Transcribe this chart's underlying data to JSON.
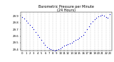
{
  "title": "Barometric Pressure per Minute\n(24 Hours)",
  "dot_color": "#0000cc",
  "background_color": "#ffffff",
  "grid_color": "#aaaaaa",
  "y_min": 29.38,
  "y_max": 29.95,
  "x_min": -0.5,
  "x_max": 23.5,
  "title_fontsize": 3.5,
  "tick_fontsize": 2.8,
  "dot_size": 0.8,
  "hours": [
    0,
    0.5,
    1,
    1.5,
    2,
    2.5,
    3,
    3.5,
    4,
    4.5,
    5,
    5.5,
    6,
    6.5,
    7,
    7.5,
    8,
    8.5,
    9,
    9.5,
    10,
    10.5,
    11,
    11.5,
    12,
    12.5,
    13,
    13.5,
    14,
    14.5,
    15,
    15.5,
    16,
    16.5,
    17,
    17.5,
    18,
    18.5,
    19,
    19.5,
    20,
    20.5,
    21,
    21.5,
    22,
    22.5,
    23
  ],
  "pressures": [
    29.88,
    29.86,
    29.83,
    29.8,
    29.76,
    29.73,
    29.7,
    29.66,
    29.62,
    29.58,
    29.54,
    29.5,
    29.47,
    29.44,
    29.42,
    29.4,
    29.39,
    29.38,
    29.39,
    29.4,
    29.42,
    29.44,
    29.46,
    29.47,
    29.48,
    29.49,
    29.5,
    29.52,
    29.54,
    29.55,
    29.57,
    29.59,
    29.62,
    29.66,
    29.7,
    29.74,
    29.78,
    29.82,
    29.85,
    29.87,
    29.89,
    29.9,
    29.91,
    29.9,
    29.88,
    29.87,
    29.92
  ],
  "x_tick_labels": [
    "0",
    "1",
    "2",
    "3",
    "4",
    "5",
    "6",
    "7",
    "8",
    "9",
    "10",
    "11",
    "12",
    "13",
    "14",
    "15",
    "16",
    "17",
    "18",
    "19",
    "20",
    "21",
    "22",
    "23"
  ],
  "x_tick_positions": [
    0,
    1,
    2,
    3,
    4,
    5,
    6,
    7,
    8,
    9,
    10,
    11,
    12,
    13,
    14,
    15,
    16,
    17,
    18,
    19,
    20,
    21,
    22,
    23
  ],
  "y_tick_labels": [
    "29.4",
    "29.5",
    "29.6",
    "29.7",
    "29.8",
    "29.9"
  ],
  "y_tick_positions": [
    29.4,
    29.5,
    29.6,
    29.7,
    29.8,
    29.9
  ]
}
